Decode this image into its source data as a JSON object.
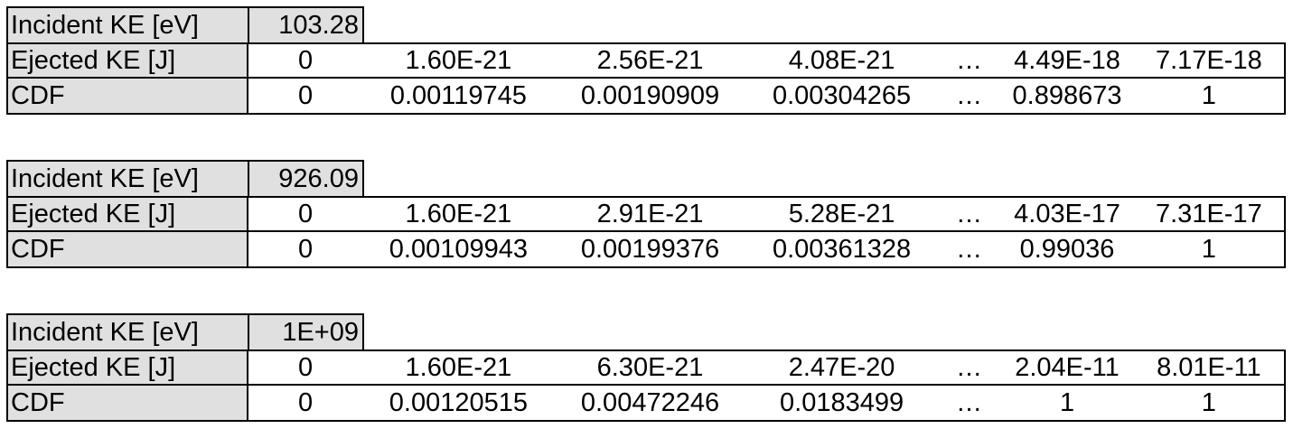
{
  "tables": [
    {
      "incident_label": "Incident KE [eV]",
      "incident_value": "103.28",
      "ejected_label": "Ejected KE [J]",
      "ejected_values": [
        "0",
        "1.60E-21",
        "2.56E-21",
        "4.08E-21",
        "…",
        "4.49E-18",
        "7.17E-18"
      ],
      "cdf_label": "CDF",
      "cdf_values": [
        "0",
        "0.00119745",
        "0.00190909",
        "0.00304265",
        "…",
        "0.898673",
        "1"
      ]
    },
    {
      "incident_label": "Incident KE [eV]",
      "incident_value": "926.09",
      "ejected_label": "Ejected KE [J]",
      "ejected_values": [
        "0",
        "1.60E-21",
        "2.91E-21",
        "5.28E-21",
        "…",
        "4.03E-17",
        "7.31E-17"
      ],
      "cdf_label": "CDF",
      "cdf_values": [
        "0",
        "0.00109943",
        "0.00199376",
        "0.00361328",
        "…",
        "0.99036",
        "1"
      ]
    },
    {
      "incident_label": "Incident KE [eV]",
      "incident_value": "1E+09",
      "ejected_label": "Ejected KE [J]",
      "ejected_values": [
        "0",
        "1.60E-21",
        "6.30E-21",
        "2.47E-20",
        "…",
        "2.04E-11",
        "8.01E-11"
      ],
      "cdf_label": "CDF",
      "cdf_values": [
        "0",
        "0.00120515",
        "0.00472246",
        "0.0183499",
        "…",
        "1",
        "1"
      ]
    }
  ]
}
